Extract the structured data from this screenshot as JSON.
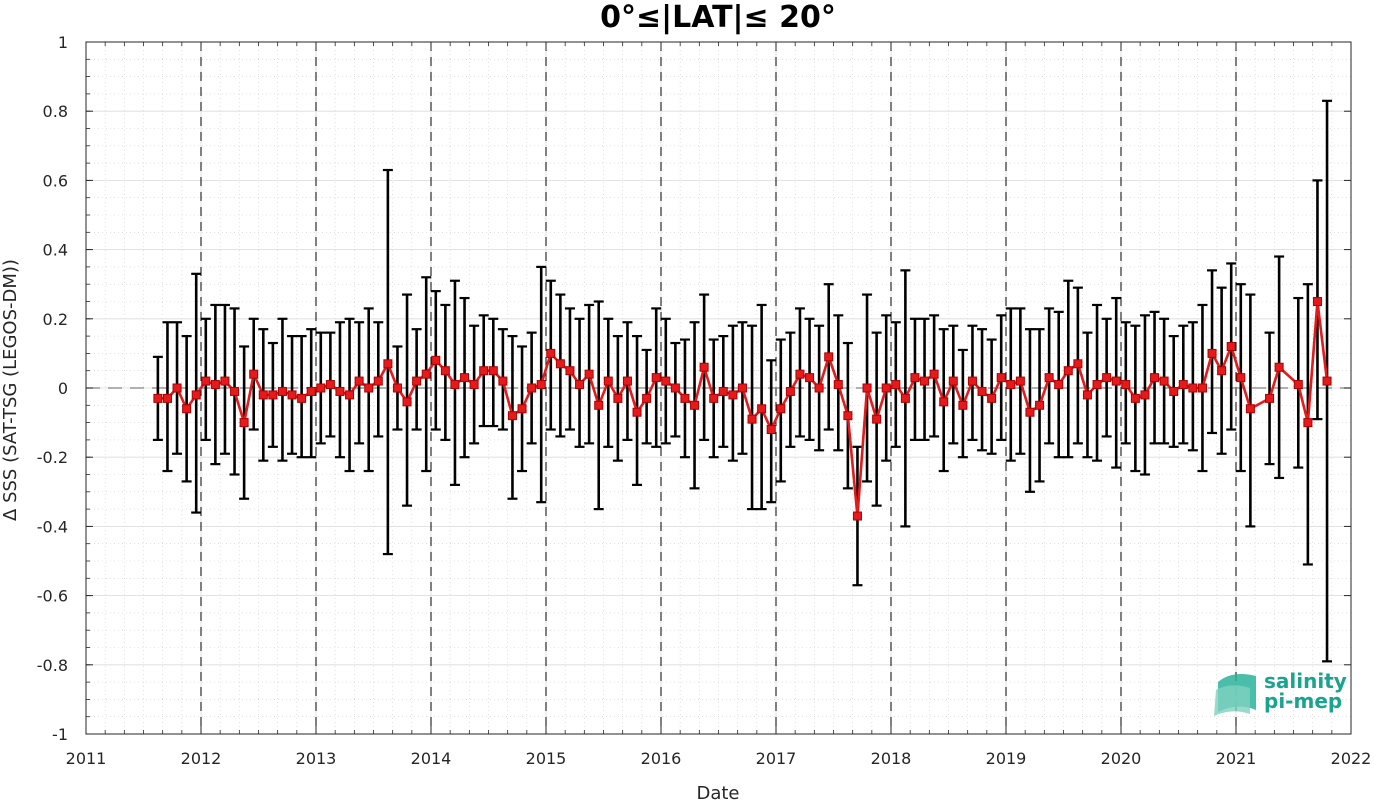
{
  "chart_data": {
    "type": "line",
    "title": "0°≤|LAT|≤ 20°",
    "xlabel": "Date",
    "ylabel": "Δ SSS (SAT-TSG (LEGOS-DM))",
    "xlim": [
      2011,
      2022
    ],
    "ylim": [
      -1,
      1
    ],
    "x_ticks": [
      "2011",
      "2012",
      "2013",
      "2014",
      "2015",
      "2016",
      "2017",
      "2018",
      "2019",
      "2020",
      "2021",
      "2022"
    ],
    "y_ticks": [
      "1",
      "0.8",
      "0.6",
      "0.4",
      "0.2",
      "0",
      "-0.2",
      "-0.4",
      "-0.6",
      "-0.8",
      "-1"
    ],
    "grid": true,
    "series": [
      {
        "color": "#e41a1c",
        "marker": "square",
        "error_bar_color": "#000000",
        "points": [
          {
            "x": "2011-08",
            "y": -0.03,
            "lo": -0.15,
            "hi": 0.09
          },
          {
            "x": "2011-09",
            "y": -0.03,
            "lo": -0.24,
            "hi": 0.19
          },
          {
            "x": "2011-10",
            "y": 0.0,
            "lo": -0.19,
            "hi": 0.19
          },
          {
            "x": "2011-11",
            "y": -0.06,
            "lo": -0.27,
            "hi": 0.15
          },
          {
            "x": "2011-12",
            "y": -0.02,
            "lo": -0.36,
            "hi": 0.33
          },
          {
            "x": "2012-01",
            "y": 0.02,
            "lo": -0.15,
            "hi": 0.2
          },
          {
            "x": "2012-02",
            "y": 0.01,
            "lo": -0.22,
            "hi": 0.24
          },
          {
            "x": "2012-03",
            "y": 0.02,
            "lo": -0.19,
            "hi": 0.24
          },
          {
            "x": "2012-04",
            "y": -0.01,
            "lo": -0.25,
            "hi": 0.23
          },
          {
            "x": "2012-05",
            "y": -0.1,
            "lo": -0.32,
            "hi": 0.12
          },
          {
            "x": "2012-06",
            "y": 0.04,
            "lo": -0.12,
            "hi": 0.2
          },
          {
            "x": "2012-07",
            "y": -0.02,
            "lo": -0.21,
            "hi": 0.17
          },
          {
            "x": "2012-08",
            "y": -0.02,
            "lo": -0.17,
            "hi": 0.13
          },
          {
            "x": "2012-09",
            "y": -0.01,
            "lo": -0.21,
            "hi": 0.2
          },
          {
            "x": "2012-10",
            "y": -0.02,
            "lo": -0.19,
            "hi": 0.15
          },
          {
            "x": "2012-11",
            "y": -0.03,
            "lo": -0.2,
            "hi": 0.15
          },
          {
            "x": "2012-12",
            "y": -0.01,
            "lo": -0.2,
            "hi": 0.17
          },
          {
            "x": "2013-01",
            "y": 0.0,
            "lo": -0.16,
            "hi": 0.16
          },
          {
            "x": "2013-02",
            "y": 0.01,
            "lo": -0.14,
            "hi": 0.16
          },
          {
            "x": "2013-03",
            "y": -0.01,
            "lo": -0.2,
            "hi": 0.19
          },
          {
            "x": "2013-04",
            "y": -0.02,
            "lo": -0.24,
            "hi": 0.2
          },
          {
            "x": "2013-05",
            "y": 0.02,
            "lo": -0.16,
            "hi": 0.19
          },
          {
            "x": "2013-06",
            "y": 0.0,
            "lo": -0.24,
            "hi": 0.23
          },
          {
            "x": "2013-07",
            "y": 0.02,
            "lo": -0.14,
            "hi": 0.19
          },
          {
            "x": "2013-08",
            "y": 0.07,
            "lo": -0.48,
            "hi": 0.63
          },
          {
            "x": "2013-09",
            "y": 0.0,
            "lo": -0.12,
            "hi": 0.12
          },
          {
            "x": "2013-10",
            "y": -0.04,
            "lo": -0.34,
            "hi": 0.27
          },
          {
            "x": "2013-11",
            "y": 0.02,
            "lo": -0.12,
            "hi": 0.17
          },
          {
            "x": "2013-12",
            "y": 0.04,
            "lo": -0.24,
            "hi": 0.32
          },
          {
            "x": "2014-01",
            "y": 0.08,
            "lo": -0.12,
            "hi": 0.28
          },
          {
            "x": "2014-02",
            "y": 0.05,
            "lo": -0.15,
            "hi": 0.24
          },
          {
            "x": "2014-03",
            "y": 0.01,
            "lo": -0.28,
            "hi": 0.31
          },
          {
            "x": "2014-04",
            "y": 0.03,
            "lo": -0.2,
            "hi": 0.26
          },
          {
            "x": "2014-05",
            "y": 0.01,
            "lo": -0.16,
            "hi": 0.18
          },
          {
            "x": "2014-06",
            "y": 0.05,
            "lo": -0.11,
            "hi": 0.21
          },
          {
            "x": "2014-07",
            "y": 0.05,
            "lo": -0.11,
            "hi": 0.2
          },
          {
            "x": "2014-08",
            "y": 0.02,
            "lo": -0.12,
            "hi": 0.17
          },
          {
            "x": "2014-09",
            "y": -0.08,
            "lo": -0.32,
            "hi": 0.15
          },
          {
            "x": "2014-10",
            "y": -0.06,
            "lo": -0.24,
            "hi": 0.12
          },
          {
            "x": "2014-11",
            "y": 0.0,
            "lo": -0.16,
            "hi": 0.16
          },
          {
            "x": "2014-12",
            "y": 0.01,
            "lo": -0.33,
            "hi": 0.35
          },
          {
            "x": "2015-01",
            "y": 0.1,
            "lo": -0.12,
            "hi": 0.31
          },
          {
            "x": "2015-02",
            "y": 0.07,
            "lo": -0.14,
            "hi": 0.27
          },
          {
            "x": "2015-03",
            "y": 0.05,
            "lo": -0.12,
            "hi": 0.23
          },
          {
            "x": "2015-04",
            "y": 0.01,
            "lo": -0.17,
            "hi": 0.2
          },
          {
            "x": "2015-05",
            "y": 0.04,
            "lo": -0.16,
            "hi": 0.24
          },
          {
            "x": "2015-06",
            "y": -0.05,
            "lo": -0.35,
            "hi": 0.25
          },
          {
            "x": "2015-07",
            "y": 0.02,
            "lo": -0.17,
            "hi": 0.2
          },
          {
            "x": "2015-08",
            "y": -0.03,
            "lo": -0.21,
            "hi": 0.15
          },
          {
            "x": "2015-09",
            "y": 0.02,
            "lo": -0.15,
            "hi": 0.19
          },
          {
            "x": "2015-10",
            "y": -0.07,
            "lo": -0.28,
            "hi": 0.15
          },
          {
            "x": "2015-11",
            "y": -0.03,
            "lo": -0.16,
            "hi": 0.11
          },
          {
            "x": "2015-12",
            "y": 0.03,
            "lo": -0.17,
            "hi": 0.23
          },
          {
            "x": "2016-01",
            "y": 0.02,
            "lo": -0.16,
            "hi": 0.2
          },
          {
            "x": "2016-02",
            "y": 0.0,
            "lo": -0.14,
            "hi": 0.13
          },
          {
            "x": "2016-03",
            "y": -0.03,
            "lo": -0.2,
            "hi": 0.14
          },
          {
            "x": "2016-04",
            "y": -0.05,
            "lo": -0.29,
            "hi": 0.19
          },
          {
            "x": "2016-05",
            "y": 0.06,
            "lo": -0.15,
            "hi": 0.27
          },
          {
            "x": "2016-06",
            "y": -0.03,
            "lo": -0.2,
            "hi": 0.14
          },
          {
            "x": "2016-07",
            "y": -0.01,
            "lo": -0.17,
            "hi": 0.15
          },
          {
            "x": "2016-08",
            "y": -0.02,
            "lo": -0.21,
            "hi": 0.18
          },
          {
            "x": "2016-09",
            "y": 0.0,
            "lo": -0.19,
            "hi": 0.19
          },
          {
            "x": "2016-10",
            "y": -0.09,
            "lo": -0.35,
            "hi": 0.18
          },
          {
            "x": "2016-11",
            "y": -0.06,
            "lo": -0.35,
            "hi": 0.24
          },
          {
            "x": "2016-12",
            "y": -0.12,
            "lo": -0.33,
            "hi": 0.08
          },
          {
            "x": "2017-01",
            "y": -0.06,
            "lo": -0.27,
            "hi": 0.14
          },
          {
            "x": "2017-02",
            "y": -0.01,
            "lo": -0.17,
            "hi": 0.16
          },
          {
            "x": "2017-03",
            "y": 0.04,
            "lo": -0.14,
            "hi": 0.23
          },
          {
            "x": "2017-04",
            "y": 0.03,
            "lo": -0.15,
            "hi": 0.2
          },
          {
            "x": "2017-05",
            "y": 0.0,
            "lo": -0.18,
            "hi": 0.18
          },
          {
            "x": "2017-06",
            "y": 0.09,
            "lo": -0.12,
            "hi": 0.3
          },
          {
            "x": "2017-07",
            "y": 0.01,
            "lo": -0.18,
            "hi": 0.21
          },
          {
            "x": "2017-08",
            "y": -0.08,
            "lo": -0.29,
            "hi": 0.13
          },
          {
            "x": "2017-09",
            "y": -0.37,
            "lo": -0.57,
            "hi": -0.17
          },
          {
            "x": "2017-10",
            "y": 0.0,
            "lo": -0.27,
            "hi": 0.27
          },
          {
            "x": "2017-11",
            "y": -0.09,
            "lo": -0.34,
            "hi": 0.16
          },
          {
            "x": "2017-12",
            "y": 0.0,
            "lo": -0.21,
            "hi": 0.21
          },
          {
            "x": "2018-01",
            "y": 0.01,
            "lo": -0.17,
            "hi": 0.19
          },
          {
            "x": "2018-02",
            "y": -0.03,
            "lo": -0.4,
            "hi": 0.34
          },
          {
            "x": "2018-03",
            "y": 0.03,
            "lo": -0.15,
            "hi": 0.2
          },
          {
            "x": "2018-04",
            "y": 0.02,
            "lo": -0.15,
            "hi": 0.2
          },
          {
            "x": "2018-05",
            "y": 0.04,
            "lo": -0.14,
            "hi": 0.21
          },
          {
            "x": "2018-06",
            "y": -0.04,
            "lo": -0.24,
            "hi": 0.17
          },
          {
            "x": "2018-07",
            "y": 0.02,
            "lo": -0.16,
            "hi": 0.18
          },
          {
            "x": "2018-08",
            "y": -0.05,
            "lo": -0.2,
            "hi": 0.11
          },
          {
            "x": "2018-09",
            "y": 0.02,
            "lo": -0.15,
            "hi": 0.18
          },
          {
            "x": "2018-10",
            "y": -0.01,
            "lo": -0.18,
            "hi": 0.17
          },
          {
            "x": "2018-11",
            "y": -0.03,
            "lo": -0.19,
            "hi": 0.14
          },
          {
            "x": "2018-12",
            "y": 0.03,
            "lo": -0.15,
            "hi": 0.21
          },
          {
            "x": "2019-01",
            "y": 0.01,
            "lo": -0.21,
            "hi": 0.23
          },
          {
            "x": "2019-02",
            "y": 0.02,
            "lo": -0.19,
            "hi": 0.23
          },
          {
            "x": "2019-03",
            "y": -0.07,
            "lo": -0.3,
            "hi": 0.17
          },
          {
            "x": "2019-04",
            "y": -0.05,
            "lo": -0.27,
            "hi": 0.17
          },
          {
            "x": "2019-05",
            "y": 0.03,
            "lo": -0.16,
            "hi": 0.23
          },
          {
            "x": "2019-06",
            "y": 0.01,
            "lo": -0.2,
            "hi": 0.22
          },
          {
            "x": "2019-07",
            "y": 0.05,
            "lo": -0.2,
            "hi": 0.31
          },
          {
            "x": "2019-08",
            "y": 0.07,
            "lo": -0.16,
            "hi": 0.29
          },
          {
            "x": "2019-09",
            "y": -0.02,
            "lo": -0.2,
            "hi": 0.16
          },
          {
            "x": "2019-10",
            "y": 0.01,
            "lo": -0.21,
            "hi": 0.24
          },
          {
            "x": "2019-11",
            "y": 0.03,
            "lo": -0.14,
            "hi": 0.2
          },
          {
            "x": "2019-12",
            "y": 0.02,
            "lo": -0.23,
            "hi": 0.26
          },
          {
            "x": "2020-01",
            "y": 0.01,
            "lo": -0.16,
            "hi": 0.19
          },
          {
            "x": "2020-02",
            "y": -0.03,
            "lo": -0.24,
            "hi": 0.18
          },
          {
            "x": "2020-03",
            "y": -0.02,
            "lo": -0.25,
            "hi": 0.21
          },
          {
            "x": "2020-04",
            "y": 0.03,
            "lo": -0.16,
            "hi": 0.22
          },
          {
            "x": "2020-05",
            "y": 0.02,
            "lo": -0.16,
            "hi": 0.2
          },
          {
            "x": "2020-06",
            "y": -0.01,
            "lo": -0.17,
            "hi": 0.15
          },
          {
            "x": "2020-07",
            "y": 0.01,
            "lo": -0.16,
            "hi": 0.18
          },
          {
            "x": "2020-08",
            "y": 0.0,
            "lo": -0.18,
            "hi": 0.19
          },
          {
            "x": "2020-09",
            "y": 0.0,
            "lo": -0.24,
            "hi": 0.24
          },
          {
            "x": "2020-10",
            "y": 0.1,
            "lo": -0.13,
            "hi": 0.34
          },
          {
            "x": "2020-11",
            "y": 0.05,
            "lo": -0.19,
            "hi": 0.29
          },
          {
            "x": "2020-12",
            "y": 0.12,
            "lo": -0.12,
            "hi": 0.36
          },
          {
            "x": "2021-01",
            "y": 0.03,
            "lo": -0.24,
            "hi": 0.3
          },
          {
            "x": "2021-02",
            "y": -0.06,
            "lo": -0.4,
            "hi": 0.27
          },
          {
            "x": "2021-04",
            "y": -0.03,
            "lo": -0.22,
            "hi": 0.16
          },
          {
            "x": "2021-05",
            "y": 0.06,
            "lo": -0.26,
            "hi": 0.38
          },
          {
            "x": "2021-07",
            "y": 0.01,
            "lo": -0.23,
            "hi": 0.26
          },
          {
            "x": "2021-08",
            "y": -0.1,
            "lo": -0.51,
            "hi": 0.3
          },
          {
            "x": "2021-09",
            "y": 0.25,
            "lo": -0.09,
            "hi": 0.6
          },
          {
            "x": "2021-10",
            "y": 0.02,
            "lo": -0.79,
            "hi": 0.83
          }
        ]
      }
    ],
    "logo": {
      "line1": "salinity",
      "line2": "pi-mep"
    }
  }
}
